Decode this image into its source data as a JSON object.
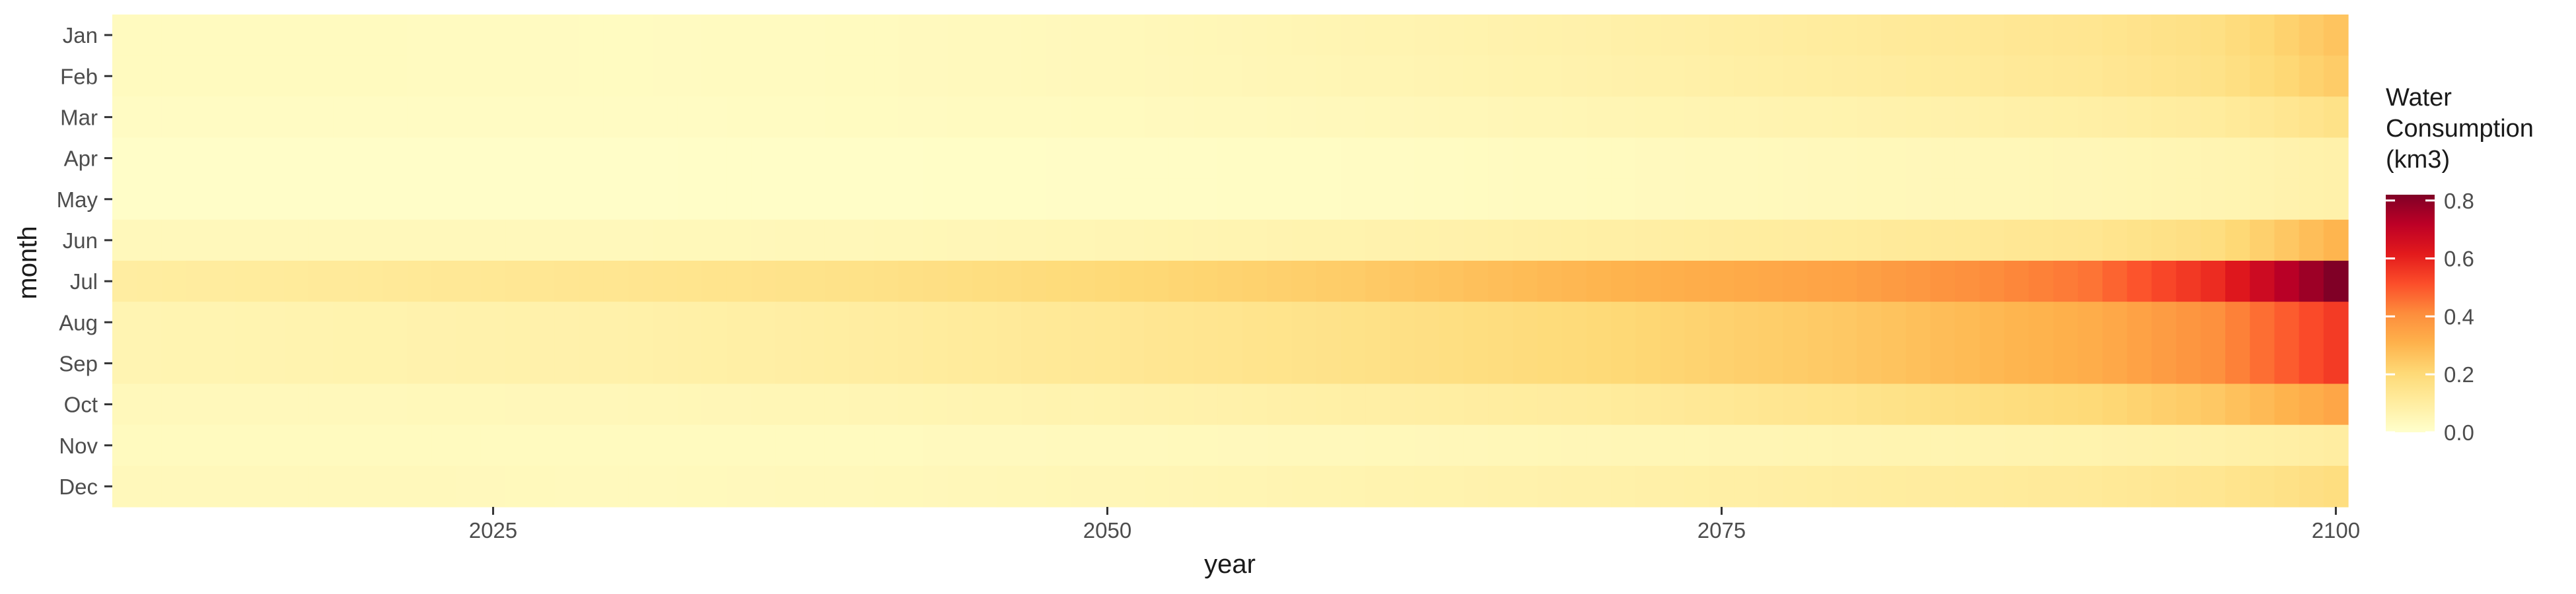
{
  "chart_data": {
    "type": "heatmap",
    "title": "",
    "xlabel": "year",
    "ylabel": "month",
    "x_ticks": [
      2025,
      2050,
      2075,
      2100
    ],
    "x_range": [
      2010,
      2100
    ],
    "months": [
      "Jan",
      "Feb",
      "Mar",
      "Apr",
      "May",
      "Jun",
      "Jul",
      "Aug",
      "Sep",
      "Oct",
      "Nov",
      "Dec"
    ],
    "legend": {
      "title_lines": [
        "Water",
        "Consumption",
        "(km3)"
      ],
      "ticks": [
        0.0,
        0.2,
        0.4,
        0.6,
        0.8
      ],
      "tick_labels": [
        "0.0",
        "0.2",
        "0.4",
        "0.6",
        "0.8"
      ],
      "range": [
        0,
        0.82
      ],
      "placement": "right"
    },
    "colorscale": [
      "#ffffcc",
      "#ffeda0",
      "#fed976",
      "#feb24c",
      "#fd8d3c",
      "#fc4e2a",
      "#e31a1c",
      "#bd0026",
      "#800026"
    ],
    "grid": false,
    "series": [
      {
        "name": "Jan",
        "x": [
          2010,
          2020,
          2030,
          2040,
          2050,
          2060,
          2070,
          2080,
          2090,
          2095,
          2100
        ],
        "values": [
          0.03,
          0.03,
          0.025,
          0.03,
          0.04,
          0.06,
          0.08,
          0.11,
          0.14,
          0.17,
          0.26
        ]
      },
      {
        "name": "Feb",
        "x": [
          2010,
          2020,
          2030,
          2040,
          2050,
          2060,
          2070,
          2080,
          2090,
          2095,
          2100
        ],
        "values": [
          0.03,
          0.03,
          0.025,
          0.03,
          0.04,
          0.055,
          0.075,
          0.1,
          0.13,
          0.16,
          0.24
        ]
      },
      {
        "name": "Mar",
        "x": [
          2010,
          2020,
          2030,
          2040,
          2050,
          2060,
          2070,
          2080,
          2090,
          2095,
          2100
        ],
        "values": [
          0.02,
          0.02,
          0.02,
          0.025,
          0.03,
          0.04,
          0.055,
          0.07,
          0.09,
          0.11,
          0.16
        ]
      },
      {
        "name": "Apr",
        "x": [
          2010,
          2020,
          2030,
          2040,
          2050,
          2060,
          2070,
          2080,
          2090,
          2095,
          2100
        ],
        "values": [
          0.01,
          0.01,
          0.01,
          0.012,
          0.015,
          0.02,
          0.03,
          0.04,
          0.05,
          0.06,
          0.08
        ]
      },
      {
        "name": "May",
        "x": [
          2010,
          2020,
          2030,
          2040,
          2050,
          2060,
          2070,
          2080,
          2090,
          2095,
          2100
        ],
        "values": [
          0.01,
          0.01,
          0.01,
          0.012,
          0.015,
          0.02,
          0.03,
          0.04,
          0.05,
          0.06,
          0.08
        ]
      },
      {
        "name": "Jun",
        "x": [
          2010,
          2020,
          2030,
          2040,
          2050,
          2060,
          2070,
          2080,
          2090,
          2095,
          2100
        ],
        "values": [
          0.04,
          0.04,
          0.04,
          0.045,
          0.055,
          0.07,
          0.09,
          0.11,
          0.14,
          0.18,
          0.3
        ]
      },
      {
        "name": "Jul",
        "x": [
          2010,
          2020,
          2030,
          2040,
          2050,
          2060,
          2070,
          2080,
          2090,
          2095,
          2100
        ],
        "values": [
          0.1,
          0.12,
          0.14,
          0.16,
          0.2,
          0.24,
          0.3,
          0.35,
          0.45,
          0.58,
          0.82
        ]
      },
      {
        "name": "Aug",
        "x": [
          2010,
          2020,
          2030,
          2040,
          2050,
          2060,
          2070,
          2080,
          2090,
          2095,
          2100
        ],
        "values": [
          0.06,
          0.07,
          0.08,
          0.1,
          0.13,
          0.16,
          0.2,
          0.25,
          0.32,
          0.4,
          0.55
        ]
      },
      {
        "name": "Sep",
        "x": [
          2010,
          2020,
          2030,
          2040,
          2050,
          2060,
          2070,
          2080,
          2090,
          2095,
          2100
        ],
        "values": [
          0.06,
          0.07,
          0.08,
          0.1,
          0.13,
          0.16,
          0.2,
          0.25,
          0.32,
          0.4,
          0.55
        ]
      },
      {
        "name": "Oct",
        "x": [
          2010,
          2020,
          2030,
          2040,
          2050,
          2060,
          2070,
          2080,
          2090,
          2095,
          2100
        ],
        "values": [
          0.04,
          0.04,
          0.045,
          0.055,
          0.07,
          0.09,
          0.11,
          0.15,
          0.2,
          0.25,
          0.34
        ]
      },
      {
        "name": "Nov",
        "x": [
          2010,
          2020,
          2030,
          2040,
          2050,
          2060,
          2070,
          2080,
          2090,
          2095,
          2100
        ],
        "values": [
          0.03,
          0.03,
          0.03,
          0.03,
          0.035,
          0.04,
          0.05,
          0.06,
          0.07,
          0.08,
          0.1
        ]
      },
      {
        "name": "Dec",
        "x": [
          2010,
          2020,
          2030,
          2040,
          2050,
          2060,
          2070,
          2080,
          2090,
          2095,
          2100
        ],
        "values": [
          0.04,
          0.04,
          0.035,
          0.04,
          0.05,
          0.065,
          0.08,
          0.1,
          0.12,
          0.14,
          0.18
        ]
      }
    ]
  }
}
